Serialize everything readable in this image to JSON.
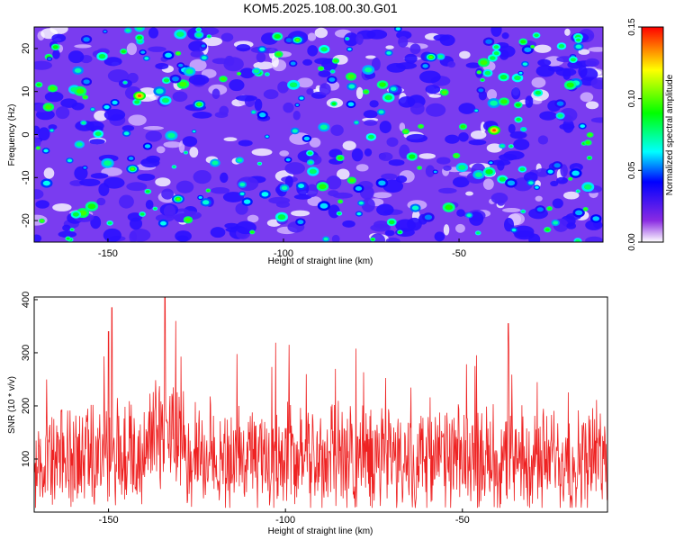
{
  "title": "KOM5.2025.108.00.30.G01",
  "chart_data": [
    {
      "type": "heatmap",
      "xlabel": "Height of straight line (km)",
      "ylabel": "Frequency (Hz)",
      "xlim": [
        -171,
        -9
      ],
      "ylim": [
        -25,
        25
      ],
      "xticks": [
        -150,
        -100,
        -50
      ],
      "yticks": [
        -20,
        -10,
        0,
        10,
        20
      ],
      "colorbar": {
        "label": "Normalized spectral amplitude",
        "range": [
          0.0,
          0.15
        ],
        "ticks": [
          "0.00",
          "0.05",
          "0.10",
          "0.15"
        ],
        "colors": [
          "#ffffff",
          "#8a2be2",
          "#0000ff",
          "#00ffff",
          "#00ff00",
          "#ffff00",
          "#ff0000"
        ]
      },
      "hotspots": [
        {
          "x": -141,
          "y": 9,
          "value": 0.14
        },
        {
          "x": -40,
          "y": 1,
          "value": 0.14
        },
        {
          "x": -130,
          "y": -15,
          "value": 0.1
        },
        {
          "x": -143,
          "y": -8,
          "value": 0.1
        },
        {
          "x": -124,
          "y": 7,
          "value": 0.1
        },
        {
          "x": -96,
          "y": 22,
          "value": 0.1
        },
        {
          "x": -58,
          "y": 18,
          "value": 0.1
        }
      ]
    },
    {
      "type": "line",
      "xlabel": "Height of straight line (km)",
      "ylabel": "SNR (10 * v/v)",
      "xlim": [
        -171,
        -9
      ],
      "ylim": [
        0,
        405
      ],
      "xticks": [
        -150,
        -100,
        -50
      ],
      "yticks": [
        100,
        200,
        300,
        400
      ],
      "series_color": "#ee2222",
      "baseline_mean": 100,
      "peaks": [
        {
          "x": -134,
          "y": 405
        },
        {
          "x": -149,
          "y": 385
        },
        {
          "x": -131,
          "y": 360
        },
        {
          "x": -37,
          "y": 355
        },
        {
          "x": -150,
          "y": 340
        },
        {
          "x": -99,
          "y": 315
        }
      ]
    }
  ]
}
